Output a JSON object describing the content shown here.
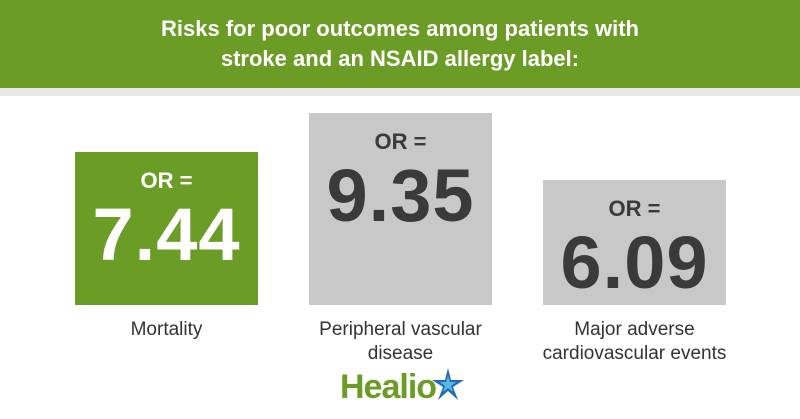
{
  "chart_data": {
    "type": "bar",
    "title": "Risks for poor outcomes among patients with stroke and an NSAID allergy label:",
    "categories": [
      "Mortality",
      "Peripheral vascular disease",
      "Major adverse cardiovascular events"
    ],
    "values": [
      7.44,
      9.35,
      6.09
    ],
    "value_prefix": "OR =",
    "colors": [
      "#6b9c25",
      "#c8c8c8",
      "#c8c8c8"
    ],
    "label_colors": [
      "#ffffff",
      "#3a3a3a",
      "#3a3a3a"
    ]
  },
  "logo": "Healio"
}
